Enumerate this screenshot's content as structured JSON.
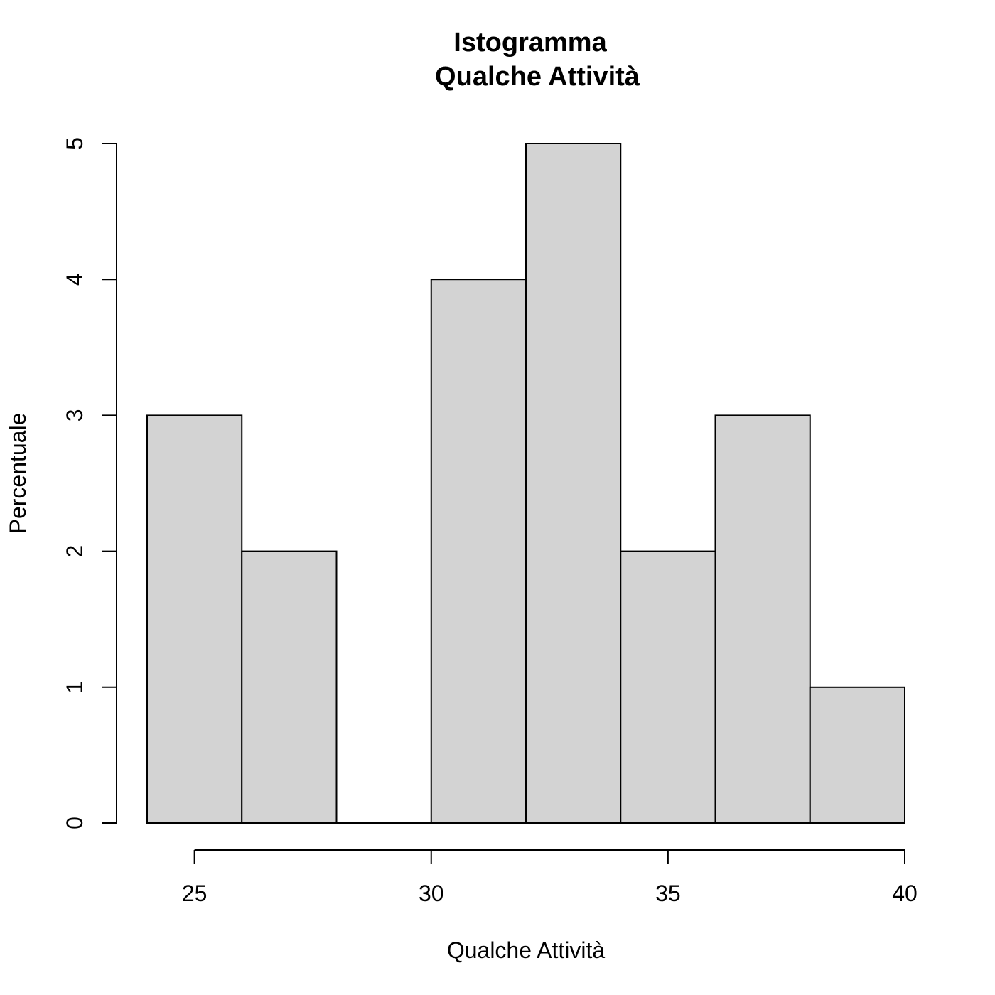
{
  "chart_data": {
    "type": "bar",
    "title": "Istogramma",
    "subtitle": "Qualche Attività",
    "xlabel": "Qualche Attività",
    "ylabel": "Percentuale",
    "bin_edges": [
      24,
      26,
      28,
      30,
      32,
      34,
      36,
      38,
      40
    ],
    "values": [
      3,
      2,
      0,
      4,
      5,
      2,
      3,
      1
    ],
    "x_ticks": [
      25,
      30,
      35,
      40
    ],
    "y_ticks": [
      0,
      1,
      2,
      3,
      4,
      5
    ],
    "xlim": [
      24,
      40
    ],
    "ylim": [
      0,
      5
    ],
    "bar_color": "#d3d3d3",
    "grid": false
  }
}
